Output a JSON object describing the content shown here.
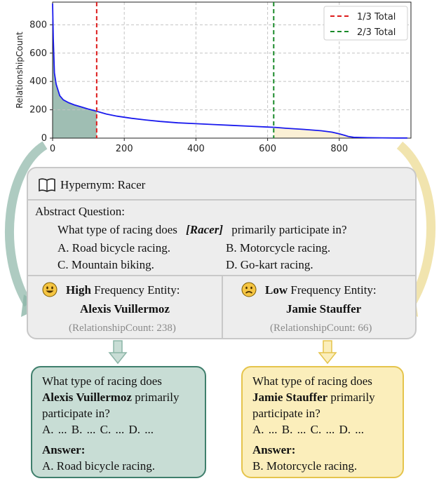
{
  "chart_data": {
    "type": "line",
    "ylabel": "RelationshipCount",
    "xlabel": "",
    "xlim": [
      0,
      1000
    ],
    "ylim": [
      0,
      960
    ],
    "xticks": [
      0,
      200,
      400,
      600,
      800
    ],
    "yticks": [
      0,
      200,
      400,
      600,
      800
    ],
    "grid": true,
    "legend_position": "top-right",
    "series": [
      {
        "color": "#1a1aee",
        "x": [
          0,
          2,
          5,
          10,
          20,
          30,
          45,
          60,
          80,
          100,
          120,
          150,
          180,
          220,
          260,
          300,
          350,
          400,
          450,
          500,
          550,
          600,
          620,
          650,
          700,
          750,
          780,
          800,
          815,
          825,
          840,
          880,
          920,
          960,
          990
        ],
        "y": [
          950,
          700,
          460,
          380,
          300,
          270,
          250,
          235,
          220,
          205,
          192,
          170,
          155,
          140,
          128,
          118,
          108,
          102,
          96,
          90,
          84,
          78,
          76,
          70,
          62,
          52,
          42,
          30,
          20,
          12,
          6,
          3,
          2,
          1,
          1
        ]
      }
    ],
    "lines": [
      {
        "name": "1/3 Total",
        "x": 123,
        "color": "#dd1c1c"
      },
      {
        "name": "2/3 Total",
        "x": 617,
        "color": "#1a8a2a"
      }
    ],
    "shaded_regions": [
      {
        "from": 0,
        "to": 123,
        "color": "#7fa89a"
      },
      {
        "from": 617,
        "to": 1000,
        "color": "#fbeed0"
      }
    ]
  },
  "panel": {
    "hypernym": "Hypernym: Racer",
    "abstract_label": "Abstract Question:",
    "question_pre": "What type of racing does",
    "question_entity": "[Racer]",
    "question_post": "primarily participate in?",
    "options": {
      "a": "A. Road bicycle racing.",
      "b": "B. Motorcycle racing.",
      "c": "C. Mountain biking.",
      "d": "D. Go-kart racing."
    },
    "high": {
      "prefix": "High",
      "suffix": "Frequency Entity:",
      "entity": "Alexis Vuillermoz",
      "count": "(RelationshipCount: 238)"
    },
    "low": {
      "prefix": "Low",
      "suffix": "Frequency Entity:",
      "entity": "Jamie Stauffer",
      "count": "(RelationshipCount: 66)"
    }
  },
  "cards": {
    "left": {
      "line1": "What type of racing does",
      "entity": "Alexis Vuillermoz",
      "line2_rest": " primarily",
      "line3": "participate in?",
      "options": "A. ...  B. ...  C. ... D. ...",
      "answer_label": "Answer:",
      "answer": "A. Road bicycle racing."
    },
    "right": {
      "line1": "What type of racing does",
      "entity": "Jamie Stauffer",
      "line2_rest": " primarily",
      "line3": "participate in?",
      "options": "A. ...  B. ...  C. ... D. ...",
      "answer_label": "Answer:",
      "answer": "B. Motorcycle racing."
    }
  },
  "colors": {
    "teal_card_bg": "#c8ddd5",
    "teal_border": "#3f7f6c",
    "yellow_card_bg": "#fbeebb",
    "yellow_border": "#e5c44c"
  }
}
